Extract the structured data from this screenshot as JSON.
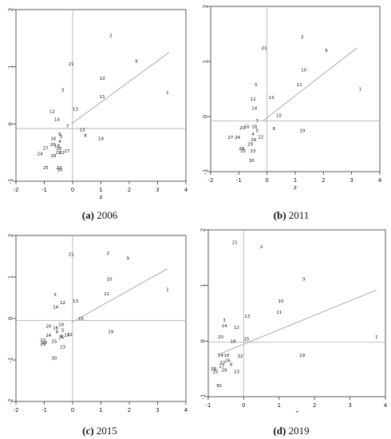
{
  "panels": [
    {
      "caption_label": "(a)",
      "caption_year": "2006",
      "chart_data": {
        "type": "scatter",
        "xlabel": "z",
        "ylabel": "",
        "xlim": [
          -2,
          4
        ],
        "ylim": [
          -1,
          2
        ],
        "xticks": [
          "-2",
          "-1",
          "0",
          "1",
          "2",
          "3",
          "4"
        ],
        "yticks": [
          "-1",
          "0",
          "1",
          "2"
        ],
        "hline_y": -0.08,
        "vline_x": 0,
        "trend": [
          [
            -0.05,
            0.0
          ],
          [
            3.4,
            1.25
          ]
        ],
        "points": [
          {
            "label": "1",
            "x": 3.35,
            "y": 0.55
          },
          {
            "label": "2",
            "x": 1.35,
            "y": 1.55
          },
          {
            "label": "9",
            "x": 2.25,
            "y": 1.1
          },
          {
            "label": "10",
            "x": 1.05,
            "y": 0.8
          },
          {
            "label": "11",
            "x": 1.05,
            "y": 0.48
          },
          {
            "label": "21",
            "x": -0.05,
            "y": 1.05
          },
          {
            "label": "3",
            "x": -0.35,
            "y": 0.6
          },
          {
            "label": "13",
            "x": 0.1,
            "y": 0.26
          },
          {
            "label": "12",
            "x": -0.72,
            "y": 0.22
          },
          {
            "label": "14",
            "x": -0.55,
            "y": 0.08
          },
          {
            "label": "7",
            "x": -0.18,
            "y": -0.04
          },
          {
            "label": "15",
            "x": 0.35,
            "y": -0.1
          },
          {
            "label": "8",
            "x": 0.45,
            "y": -0.2
          },
          {
            "label": "19",
            "x": 1.0,
            "y": -0.25
          },
          {
            "label": "5",
            "x": -0.4,
            "y": -0.22
          },
          {
            "label": "6",
            "x": -0.45,
            "y": -0.18
          },
          {
            "label": "16",
            "x": -0.68,
            "y": -0.25
          },
          {
            "label": "4",
            "x": -0.45,
            "y": -0.3
          },
          {
            "label": "20",
            "x": -0.7,
            "y": -0.36
          },
          {
            "label": "18",
            "x": -0.55,
            "y": -0.38
          },
          {
            "label": "27",
            "x": -0.95,
            "y": -0.42
          },
          {
            "label": "26",
            "x": -0.48,
            "y": -0.43
          },
          {
            "label": "17",
            "x": -0.2,
            "y": -0.47
          },
          {
            "label": "29",
            "x": -0.5,
            "y": -0.5
          },
          {
            "label": "22",
            "x": -0.38,
            "y": -0.5
          },
          {
            "label": "24",
            "x": -1.15,
            "y": -0.52
          },
          {
            "label": "28",
            "x": -0.68,
            "y": -0.55
          },
          {
            "label": "25",
            "x": -0.95,
            "y": -0.76
          },
          {
            "label": "23",
            "x": -0.48,
            "y": -0.76
          },
          {
            "label": "30",
            "x": -0.45,
            "y": -0.8
          }
        ]
      }
    },
    {
      "caption_label": "(b)",
      "caption_year": "2011",
      "chart_data": {
        "type": "scatter",
        "xlabel": "z",
        "ylabel": "",
        "xlim": [
          -2,
          4
        ],
        "ylim": [
          -1,
          2
        ],
        "xticks": [
          "-2",
          "-1",
          "0",
          "1",
          "2",
          "3",
          "4"
        ],
        "yticks": [
          "-1",
          "0",
          "1",
          "2"
        ],
        "hline_y": -0.08,
        "vline_x": 0,
        "trend": [
          [
            -0.15,
            -0.08
          ],
          [
            3.2,
            1.25
          ]
        ],
        "points": [
          {
            "label": "1",
            "x": 3.3,
            "y": 0.5
          },
          {
            "label": "2",
            "x": 1.25,
            "y": 1.45
          },
          {
            "label": "9",
            "x": 2.1,
            "y": 1.2
          },
          {
            "label": "10",
            "x": 1.3,
            "y": 0.85
          },
          {
            "label": "11",
            "x": 1.15,
            "y": 0.58
          },
          {
            "label": "21",
            "x": -0.1,
            "y": 1.25
          },
          {
            "label": "3",
            "x": -0.4,
            "y": 0.58
          },
          {
            "label": "12",
            "x": -0.5,
            "y": 0.32
          },
          {
            "label": "13",
            "x": 0.15,
            "y": 0.35
          },
          {
            "label": "14",
            "x": -0.45,
            "y": 0.15
          },
          {
            "label": "15",
            "x": 0.42,
            "y": 0.02
          },
          {
            "label": "7",
            "x": -0.35,
            "y": -0.08
          },
          {
            "label": "16",
            "x": -0.72,
            "y": -0.18
          },
          {
            "label": "18",
            "x": -0.45,
            "y": -0.18
          },
          {
            "label": "20",
            "x": -0.88,
            "y": -0.2
          },
          {
            "label": "5",
            "x": -0.35,
            "y": -0.25
          },
          {
            "label": "6",
            "x": 0.25,
            "y": -0.22
          },
          {
            "label": "19",
            "x": 1.25,
            "y": -0.25
          },
          {
            "label": "4",
            "x": -0.5,
            "y": -0.32
          },
          {
            "label": "27",
            "x": -1.3,
            "y": -0.38
          },
          {
            "label": "24",
            "x": -1.05,
            "y": -0.38
          },
          {
            "label": "26",
            "x": -0.48,
            "y": -0.42
          },
          {
            "label": "22",
            "x": -0.22,
            "y": -0.37
          },
          {
            "label": "29",
            "x": -0.6,
            "y": -0.5
          },
          {
            "label": "28",
            "x": -0.9,
            "y": -0.58
          },
          {
            "label": "25",
            "x": -0.85,
            "y": -0.62
          },
          {
            "label": "23",
            "x": -0.5,
            "y": -0.62
          },
          {
            "label": "30",
            "x": -0.55,
            "y": -0.8
          }
        ]
      }
    },
    {
      "caption_label": "(c)",
      "caption_year": "2015",
      "chart_data": {
        "type": "scatter",
        "xlabel": "z",
        "ylabel": "",
        "xlim": [
          -2,
          4
        ],
        "ylim": [
          -2,
          2
        ],
        "xticks": [
          "-2",
          "-1",
          "0",
          "1",
          "2",
          "3",
          "4"
        ],
        "yticks": [
          "-2",
          "-1",
          "0",
          "1",
          "2"
        ],
        "hline_y": -0.05,
        "vline_x": 0,
        "trend": [
          [
            -0.05,
            -0.1
          ],
          [
            3.35,
            1.2
          ]
        ],
        "points": [
          {
            "label": "1",
            "x": 3.35,
            "y": 0.7
          },
          {
            "label": "2",
            "x": 1.25,
            "y": 1.58
          },
          {
            "label": "9",
            "x": 1.95,
            "y": 1.45
          },
          {
            "label": "21",
            "x": -0.05,
            "y": 1.55
          },
          {
            "label": "10",
            "x": 1.3,
            "y": 0.95
          },
          {
            "label": "11",
            "x": 1.2,
            "y": 0.6
          },
          {
            "label": "3",
            "x": -0.62,
            "y": 0.58
          },
          {
            "label": "12",
            "x": -0.35,
            "y": 0.38
          },
          {
            "label": "13",
            "x": 0.1,
            "y": 0.42
          },
          {
            "label": "14",
            "x": -0.6,
            "y": 0.28
          },
          {
            "label": "15",
            "x": 0.3,
            "y": 0.0
          },
          {
            "label": "19",
            "x": 1.35,
            "y": -0.32
          },
          {
            "label": "20",
            "x": -0.85,
            "y": -0.18
          },
          {
            "label": "16",
            "x": -0.6,
            "y": -0.22
          },
          {
            "label": "18",
            "x": -0.4,
            "y": -0.14
          },
          {
            "label": "5",
            "x": -0.35,
            "y": -0.28
          },
          {
            "label": "24",
            "x": -0.85,
            "y": -0.4
          },
          {
            "label": "6",
            "x": -0.55,
            "y": -0.32
          },
          {
            "label": "4",
            "x": -0.4,
            "y": -0.42
          },
          {
            "label": "22",
            "x": -0.1,
            "y": -0.38
          },
          {
            "label": "17",
            "x": -0.2,
            "y": -0.4
          },
          {
            "label": "26",
            "x": -0.4,
            "y": -0.45
          },
          {
            "label": "27",
            "x": -1.05,
            "y": -0.52
          },
          {
            "label": "25",
            "x": -0.65,
            "y": -0.55
          },
          {
            "label": "29",
            "x": -1.05,
            "y": -0.62
          },
          {
            "label": "28",
            "x": -1.0,
            "y": -0.58
          },
          {
            "label": "23",
            "x": -0.35,
            "y": -0.68
          },
          {
            "label": "30",
            "x": -0.65,
            "y": -0.95
          }
        ]
      }
    },
    {
      "caption_label": "(d)",
      "caption_year": "2019",
      "chart_data": {
        "type": "scatter",
        "xlabel": "z",
        "ylabel": "",
        "xlim": [
          -1,
          4
        ],
        "ylim": [
          -1,
          2
        ],
        "xticks": [
          "-1",
          "0",
          "1",
          "2",
          "3",
          "4"
        ],
        "yticks": [
          "-1",
          "0",
          "1",
          "2"
        ],
        "hline_y": -0.02,
        "vline_x": 0,
        "trend": [
          [
            -0.75,
            -0.25
          ],
          [
            3.75,
            0.92
          ]
        ],
        "points": [
          {
            "label": "1",
            "x": 3.75,
            "y": 0.08
          },
          {
            "label": "2",
            "x": 0.5,
            "y": 1.7
          },
          {
            "label": "21",
            "x": -0.25,
            "y": 1.78
          },
          {
            "label": "9",
            "x": 1.7,
            "y": 1.12
          },
          {
            "label": "10",
            "x": 1.05,
            "y": 0.72
          },
          {
            "label": "11",
            "x": 1.0,
            "y": 0.52
          },
          {
            "label": "13",
            "x": 0.1,
            "y": 0.45
          },
          {
            "label": "3",
            "x": -0.55,
            "y": 0.38
          },
          {
            "label": "14",
            "x": -0.55,
            "y": 0.28
          },
          {
            "label": "12",
            "x": -0.2,
            "y": 0.25
          },
          {
            "label": "20",
            "x": -0.65,
            "y": 0.08
          },
          {
            "label": "15",
            "x": 0.08,
            "y": 0.04
          },
          {
            "label": "18",
            "x": -0.3,
            "y": 0.0
          },
          {
            "label": "19",
            "x": 1.65,
            "y": -0.25
          },
          {
            "label": "24",
            "x": -0.65,
            "y": -0.25
          },
          {
            "label": "16",
            "x": -0.48,
            "y": -0.25
          },
          {
            "label": "32",
            "x": -0.1,
            "y": -0.27
          },
          {
            "label": "26",
            "x": -0.45,
            "y": -0.35
          },
          {
            "label": "22",
            "x": -0.6,
            "y": -0.38
          },
          {
            "label": "6",
            "x": -0.35,
            "y": -0.42
          },
          {
            "label": "27",
            "x": -0.62,
            "y": -0.45
          },
          {
            "label": "28",
            "x": -0.85,
            "y": -0.5
          },
          {
            "label": "29",
            "x": -0.55,
            "y": -0.52
          },
          {
            "label": "25",
            "x": -0.8,
            "y": -0.55
          },
          {
            "label": "23",
            "x": -0.2,
            "y": -0.55
          },
          {
            "label": "30",
            "x": -0.7,
            "y": -0.8
          }
        ]
      }
    }
  ]
}
